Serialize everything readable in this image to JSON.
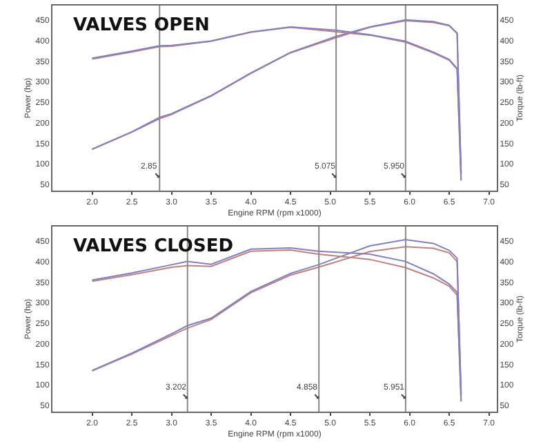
{
  "chart_data": [
    {
      "type": "line",
      "title": "VALVES OPEN",
      "xlabel": "Engine RPM (rpm x1000)",
      "ylabel": "Power (hp)",
      "y2label": "Torque (lb-ft)",
      "x": [
        2.0,
        2.5,
        2.85,
        3.0,
        3.5,
        4.0,
        4.5,
        5.075,
        5.5,
        5.95,
        6.3,
        6.5,
        6.6,
        6.65
      ],
      "series": [
        {
          "color": "#c08080",
          "values": [
            135,
            177,
            210,
            220,
            265,
            320,
            370,
            407,
            432,
            448,
            444,
            436,
            417,
            76
          ]
        },
        {
          "color": "#8080c0",
          "values": [
            136,
            178,
            213,
            222,
            266,
            321,
            371,
            410,
            433,
            450,
            446,
            437,
            418,
            76
          ]
        },
        {
          "color": "#c08080",
          "axis": "y2",
          "values": [
            355,
            372,
            385,
            386,
            398,
            420,
            432,
            421,
            413,
            396,
            370,
            352,
            330,
            60
          ]
        },
        {
          "color": "#8080c0",
          "axis": "y2",
          "values": [
            357,
            374,
            387,
            388,
            399,
            421,
            433,
            425,
            414,
            398,
            372,
            354,
            332,
            60
          ]
        }
      ],
      "xlim": [
        1.5,
        7.1
      ],
      "xticks": [
        {
          "value": 2,
          "label": "2.0"
        },
        2.5,
        {
          "value": 3,
          "label": "3.0"
        },
        3.5,
        {
          "value": 4,
          "label": "4.0"
        },
        4.5,
        {
          "value": 5,
          "label": "5.0"
        },
        5.5,
        {
          "value": 6,
          "label": "6.0"
        },
        6.5,
        {
          "value": 7,
          "label": "7.0"
        }
      ],
      "ylim": [
        35,
        485
      ],
      "yticks": [
        50,
        100,
        150,
        200,
        250,
        300,
        350,
        400,
        450
      ],
      "y2lim": [
        35,
        485
      ],
      "y2ticks": [
        50,
        100,
        150,
        200,
        250,
        300,
        350,
        400,
        450
      ],
      "ref_lines": [
        {
          "axis": "x",
          "value": 2.85,
          "label": "2.85"
        },
        {
          "axis": "x",
          "value": 5.075,
          "label": "5.075"
        },
        {
          "axis": "x",
          "value": 5.95,
          "label": "5.950"
        }
      ]
    },
    {
      "type": "line",
      "title": "VALVES CLOSED",
      "xlabel": "Engine RPM (rpm x1000)",
      "ylabel": "Power (hp)",
      "y2label": "Torque (lb-ft)",
      "x": [
        2.0,
        2.5,
        3.0,
        3.2,
        3.5,
        4.0,
        4.5,
        4.85,
        5.5,
        5.95,
        6.3,
        6.5,
        6.6,
        6.65
      ],
      "series": [
        {
          "color": "#c08080",
          "values": [
            134,
            175,
            220,
            238,
            259,
            324,
            367,
            386,
            424,
            436,
            432,
            421,
            400,
            76
          ]
        },
        {
          "color": "#8080c0",
          "values": [
            135,
            177,
            224,
            244,
            262,
            327,
            371,
            392,
            438,
            453,
            444,
            427,
            408,
            76
          ]
        },
        {
          "color": "#c08080",
          "axis": "y2",
          "values": [
            352,
            368,
            386,
            390,
            388,
            425,
            428,
            418,
            405,
            385,
            360,
            340,
            318,
            60
          ]
        },
        {
          "color": "#8080c0",
          "axis": "y2",
          "values": [
            355,
            372,
            392,
            400,
            393,
            430,
            433,
            425,
            418,
            400,
            370,
            345,
            325,
            60
          ]
        }
      ],
      "xlim": [
        1.5,
        7.1
      ],
      "xticks": [
        {
          "value": 2,
          "label": "2.0"
        },
        2.5,
        {
          "value": 3,
          "label": "3.0"
        },
        3.5,
        {
          "value": 4,
          "label": "4.0"
        },
        4.5,
        {
          "value": 5,
          "label": "5.0"
        },
        5.5,
        {
          "value": 6,
          "label": "6.0"
        },
        6.5,
        {
          "value": 7,
          "label": "7.0"
        }
      ],
      "ylim": [
        35,
        485
      ],
      "yticks": [
        50,
        100,
        150,
        200,
        250,
        300,
        350,
        400,
        450
      ],
      "y2lim": [
        35,
        485
      ],
      "y2ticks": [
        50,
        100,
        150,
        200,
        250,
        300,
        350,
        400,
        450
      ],
      "ref_lines": [
        {
          "axis": "x",
          "value": 3.202,
          "label": "3.202"
        },
        {
          "axis": "x",
          "value": 4.858,
          "label": "4.858"
        },
        {
          "axis": "x",
          "value": 5.951,
          "label": "5.951"
        }
      ]
    }
  ]
}
